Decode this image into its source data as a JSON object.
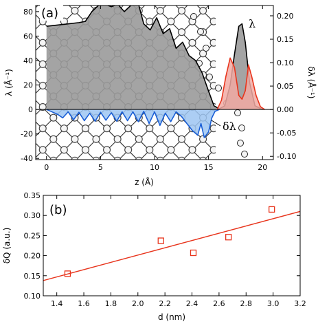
{
  "chart_data": [
    {
      "type": "area",
      "panel_label": "(a)",
      "xlabel": "z (Å)",
      "ylabel_left": "λ (Å⁻¹)",
      "ylabel_right": "δλ (Å⁻¹)",
      "xlim": [
        -1,
        21
      ],
      "ylim_left": [
        -41,
        85
      ],
      "ylim_right": [
        -0.107,
        0.222
      ],
      "x_ticks": [
        "0",
        "5",
        "10",
        "15",
        "20"
      ],
      "y_ticks_left": [
        "-40",
        "-20",
        "0",
        "20",
        "40",
        "60",
        "80"
      ],
      "y_ticks_right": [
        "-0.10",
        "-0.05",
        "0.00",
        "0.05",
        "0.10",
        "0.15",
        "0.20"
      ],
      "background": "atomic slab structure (ball-and-stick) behind the curves",
      "series": [
        {
          "name": "λ",
          "axis": "left",
          "color": "#000000",
          "fill": "#9a9a9a",
          "x": [
            0,
            1,
            2,
            3,
            3.6,
            4.2,
            4.8,
            5.4,
            6.0,
            6.6,
            7.2,
            7.8,
            8.4,
            9.0,
            9.6,
            10.2,
            10.8,
            11.4,
            12.0,
            12.6,
            13.2,
            13.8,
            14.4,
            15.0,
            15.5,
            16.0,
            16.5,
            17.0,
            17.4,
            17.8,
            18.1,
            18.4,
            18.8,
            19.3,
            20.0
          ],
          "y": [
            68,
            69,
            70,
            71,
            72,
            80,
            85,
            86,
            84,
            86,
            80,
            85,
            90,
            70,
            65,
            75,
            62,
            66,
            50,
            55,
            44,
            40,
            30,
            15,
            3,
            0.5,
            3,
            20,
            45,
            68,
            70,
            55,
            22,
            3,
            0
          ]
        },
        {
          "name": "",
          "axis": "right",
          "color": "#e8341c",
          "fill": "#f2aaa3",
          "x": [
            15.8,
            16.2,
            16.6,
            17.0,
            17.4,
            17.8,
            18.1,
            18.4,
            18.7,
            19.0,
            19.4,
            19.8,
            20.2
          ],
          "y": [
            0.0,
            0.02,
            0.07,
            0.11,
            0.09,
            0.03,
            0.022,
            0.04,
            0.095,
            0.07,
            0.03,
            0.006,
            0.0
          ]
        },
        {
          "name": "δλ",
          "axis": "right",
          "color": "#1a5fd6",
          "fill": "#9ec6f2",
          "x": [
            0,
            0.5,
            1.0,
            1.5,
            2.0,
            2.5,
            3.0,
            3.5,
            4.0,
            4.5,
            5.0,
            5.5,
            6.0,
            6.5,
            7.0,
            7.5,
            8.0,
            8.5,
            9.0,
            9.5,
            10.0,
            10.5,
            11.0,
            11.5,
            12.0,
            12.5,
            13.0,
            13.5,
            14.0,
            14.3,
            14.6,
            15.0,
            15.3,
            15.6,
            16.0
          ],
          "y": [
            0,
            -0.005,
            -0.01,
            -0.018,
            -0.005,
            -0.022,
            -0.006,
            -0.024,
            -0.008,
            -0.025,
            -0.006,
            -0.023,
            -0.007,
            -0.025,
            -0.005,
            -0.024,
            -0.005,
            -0.026,
            -0.004,
            -0.03,
            -0.005,
            -0.034,
            -0.008,
            -0.026,
            -0.005,
            -0.015,
            -0.03,
            -0.045,
            -0.055,
            -0.03,
            -0.06,
            -0.048,
            -0.018,
            -0.004,
            0.0
          ]
        }
      ]
    },
    {
      "type": "scatter",
      "panel_label": "(b)",
      "xlabel": "d (nm)",
      "ylabel": "δQ (a.u.)",
      "xlim": [
        1.3,
        3.2
      ],
      "ylim": [
        0.1,
        0.35
      ],
      "x_ticks": [
        "1.4",
        "1.6",
        "1.8",
        "2.0",
        "2.2",
        "2.4",
        "2.6",
        "2.8",
        "3.0",
        "3.2"
      ],
      "y_ticks": [
        "0.10",
        "0.15",
        "0.20",
        "0.25",
        "0.30",
        "0.35"
      ],
      "marker_color": "#e8341c",
      "line_color": "#e8341c",
      "points": {
        "x": [
          1.48,
          2.17,
          2.41,
          2.67,
          2.99
        ],
        "y": [
          0.155,
          0.237,
          0.207,
          0.246,
          0.315
        ]
      },
      "fit_line": {
        "x": [
          1.3,
          3.2
        ],
        "y": [
          0.138,
          0.31
        ]
      }
    }
  ]
}
